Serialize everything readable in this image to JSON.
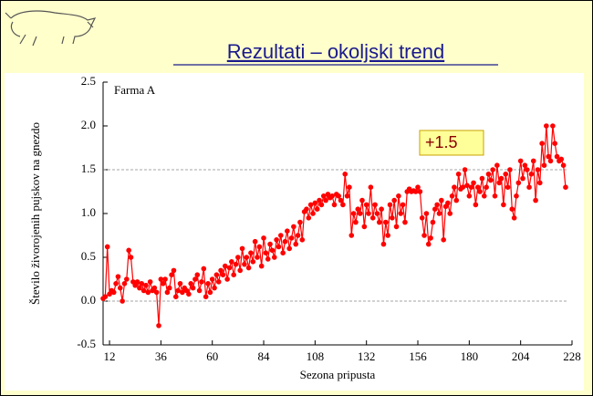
{
  "header": {
    "title": "Rezultati – okoljski trend"
  },
  "chart_data": {
    "type": "line",
    "subtitle": "Farma A",
    "xlabel": "Sezona pripusta",
    "ylabel": "Število živorojenih pujskov na gnezdo",
    "annotation": "+1.5",
    "xlim": [
      9,
      228
    ],
    "xticks": [
      12,
      36,
      60,
      84,
      108,
      132,
      156,
      180,
      204,
      228
    ],
    "ylim": [
      -0.5,
      2.5
    ],
    "yticks": [
      -0.5,
      {
        "value": 0,
        "label": "0.0"
      },
      0.5,
      {
        "value": 1,
        "label": "1.0"
      },
      1.5,
      {
        "value": 2,
        "label": "2.0"
      },
      2.5
    ],
    "hlines": [
      0,
      1.5
    ],
    "x": [
      9,
      10,
      11,
      12,
      13,
      14,
      15,
      16,
      17,
      18,
      19,
      20,
      21,
      22,
      23,
      24,
      25,
      26,
      27,
      28,
      29,
      30,
      31,
      32,
      33,
      34,
      35,
      36,
      37,
      38,
      39,
      40,
      41,
      42,
      43,
      44,
      45,
      46,
      47,
      48,
      49,
      50,
      51,
      52,
      53,
      54,
      55,
      56,
      57,
      58,
      59,
      60,
      61,
      62,
      63,
      64,
      65,
      66,
      67,
      68,
      69,
      70,
      71,
      72,
      73,
      74,
      75,
      76,
      77,
      78,
      79,
      80,
      81,
      82,
      83,
      84,
      85,
      86,
      87,
      88,
      89,
      90,
      91,
      92,
      93,
      94,
      95,
      96,
      97,
      98,
      99,
      100,
      101,
      102,
      103,
      104,
      105,
      106,
      107,
      108,
      109,
      110,
      111,
      112,
      113,
      114,
      115,
      116,
      117,
      118,
      119,
      120,
      121,
      122,
      123,
      124,
      125,
      126,
      127,
      128,
      129,
      130,
      131,
      132,
      133,
      134,
      135,
      136,
      137,
      138,
      139,
      140,
      141,
      142,
      143,
      144,
      145,
      146,
      147,
      148,
      149,
      150,
      151,
      152,
      153,
      154,
      155,
      156,
      157,
      158,
      159,
      160,
      161,
      162,
      163,
      164,
      165,
      166,
      167,
      168,
      169,
      170,
      171,
      172,
      173,
      174,
      175,
      176,
      177,
      178,
      179,
      180,
      181,
      182,
      183,
      184,
      185,
      186,
      187,
      188,
      189,
      190,
      191,
      192,
      193,
      194,
      195,
      196,
      197,
      198,
      199,
      200,
      201,
      202,
      203,
      204,
      205,
      206,
      207,
      208,
      209,
      210,
      211,
      212,
      213,
      214,
      215,
      216,
      217,
      218,
      219,
      220,
      221,
      222,
      223,
      224,
      225
    ],
    "series": [
      {
        "color": "#ff0000",
        "values": [
          0.03,
          0.05,
          0.62,
          0.08,
          0.12,
          0.1,
          0.2,
          0.28,
          0.15,
          0.0,
          0.2,
          0.25,
          0.58,
          0.5,
          0.22,
          0.18,
          0.22,
          0.15,
          0.2,
          0.12,
          0.18,
          0.1,
          0.22,
          0.12,
          0.15,
          0.1,
          -0.28,
          0.25,
          0.2,
          0.25,
          0.1,
          0.15,
          0.3,
          0.35,
          0.05,
          0.12,
          0.2,
          0.1,
          0.15,
          0.12,
          0.08,
          0.2,
          0.15,
          0.25,
          0.3,
          0.12,
          0.22,
          0.37,
          0.05,
          0.2,
          0.1,
          0.25,
          0.15,
          0.3,
          0.22,
          0.35,
          0.3,
          0.4,
          0.25,
          0.38,
          0.45,
          0.3,
          0.42,
          0.5,
          0.35,
          0.6,
          0.42,
          0.5,
          0.38,
          0.55,
          0.45,
          0.68,
          0.5,
          0.62,
          0.4,
          0.72,
          0.55,
          0.48,
          0.65,
          0.58,
          0.5,
          0.7,
          0.62,
          0.75,
          0.55,
          0.68,
          0.8,
          0.6,
          0.72,
          0.85,
          0.65,
          0.75,
          0.9,
          0.7,
          1.02,
          1.05,
          0.95,
          1.1,
          1.0,
          1.12,
          1.05,
          1.15,
          1.1,
          1.2,
          1.15,
          1.22,
          1.18,
          1.2,
          1.1,
          1.22,
          1.2,
          1.15,
          1.1,
          1.45,
          1.2,
          1.3,
          0.75,
          1.0,
          0.9,
          1.05,
          1.0,
          1.15,
          0.85,
          1.1,
          1.0,
          1.3,
          0.95,
          1.1,
          1.0,
          0.9,
          1.05,
          0.65,
          0.9,
          0.75,
          1.1,
          0.95,
          1.15,
          0.85,
          1.2,
          1.0,
          1.1,
          0.9,
          1.25,
          1.28,
          1.25,
          1.26,
          1.25,
          1.3,
          1.25,
          0.95,
          0.75,
          1.0,
          0.65,
          0.72,
          0.9,
          1.05,
          1.1,
          1.0,
          1.15,
          0.7,
          1.08,
          1.12,
          1.0,
          1.2,
          1.3,
          1.15,
          1.45,
          1.28,
          1.3,
          1.5,
          1.32,
          1.2,
          1.3,
          1.35,
          1.1,
          1.3,
          1.25,
          1.4,
          1.2,
          1.3,
          1.45,
          1.38,
          1.5,
          1.2,
          1.55,
          1.35,
          1.4,
          1.1,
          1.45,
          1.3,
          1.5,
          1.05,
          0.95,
          1.2,
          1.35,
          1.6,
          1.4,
          1.55,
          1.5,
          1.3,
          1.45,
          1.6,
          1.15,
          1.5,
          1.35,
          1.8,
          1.55,
          2.0,
          1.65,
          1.6,
          2.0,
          1.8,
          1.65,
          1.6,
          1.62,
          1.55,
          1.3
        ]
      }
    ]
  }
}
